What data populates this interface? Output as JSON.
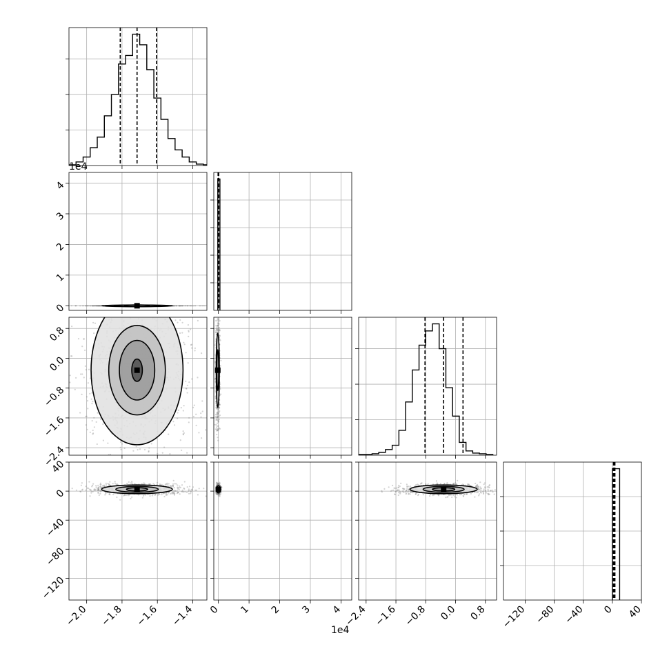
{
  "chart_data": {
    "type": "corner",
    "parameters": [
      {
        "range": [
          -2.1,
          -1.32
        ],
        "ticks": [
          -2.0,
          -1.8,
          -1.6,
          -1.4
        ],
        "tick_labels": [
          "−2.0",
          "−1.8",
          "−1.6",
          "−1.4"
        ],
        "offset_text": "",
        "quantiles": [
          -1.81,
          -1.715,
          -1.605
        ],
        "hist_bin_edges": [
          -2.1,
          -2.06,
          -2.02,
          -1.98,
          -1.94,
          -1.9,
          -1.86,
          -1.82,
          -1.78,
          -1.74,
          -1.7,
          -1.66,
          -1.62,
          -1.58,
          -1.54,
          -1.5,
          -1.46,
          -1.42,
          -1.38,
          -1.34,
          -1.3
        ],
        "hist_counts": [
          1,
          5,
          12,
          25,
          40,
          70,
          100,
          143,
          155,
          185,
          170,
          135,
          95,
          65,
          38,
          22,
          12,
          5,
          2,
          1
        ]
      },
      {
        "range": [
          -0.15,
          4.35
        ],
        "ticks": [
          0,
          1,
          2,
          3,
          4
        ],
        "tick_labels": [
          "0",
          "1",
          "2",
          "3",
          "4"
        ],
        "offset_text": "1e4",
        "quantiles": [
          -0.01,
          0.0,
          0.01
        ],
        "hist_bin_edges": [
          -0.02,
          0.05
        ],
        "hist_counts": [
          1
        ]
      },
      {
        "range": [
          -2.6,
          1.1
        ],
        "ticks": [
          -2.4,
          -1.6,
          -0.8,
          0.0,
          0.8
        ],
        "tick_labels": [
          "−2.4",
          "−1.6",
          "−0.8",
          "0.0",
          "0.8"
        ],
        "offset_text": "",
        "quantiles": [
          -0.82,
          -0.32,
          0.2
        ],
        "hist_bin_edges": [
          -2.6,
          -2.42,
          -2.24,
          -2.06,
          -1.88,
          -1.7,
          -1.52,
          -1.34,
          -1.16,
          -0.98,
          -0.8,
          -0.62,
          -0.44,
          -0.26,
          -0.08,
          0.1,
          0.28,
          0.46,
          0.64,
          0.82,
          1.0
        ],
        "hist_counts": [
          1,
          1,
          2,
          4,
          8,
          14,
          35,
          75,
          120,
          155,
          175,
          185,
          150,
          95,
          55,
          18,
          6,
          3,
          2,
          1
        ]
      },
      {
        "range": [
          -150,
          40
        ],
        "ticks": [
          -120,
          -80,
          -40,
          0,
          40
        ],
        "tick_labels": [
          "−120",
          "−80",
          "−40",
          "0",
          "40"
        ],
        "offset_text": "",
        "quantiles": [
          1.5,
          2.5,
          3.5
        ],
        "hist_bin_edges": [
          0.0,
          3.5,
          10.0
        ],
        "hist_counts": [
          1,
          1
        ]
      }
    ],
    "pairs": [
      {
        "row": 1,
        "col": 0,
        "center": [
          -1.715,
          0.0
        ],
        "contour_semi_axes": [
          [
            0.2,
            0.0004
          ],
          [
            0.13,
            0.00027
          ],
          [
            0.07,
            0.00015
          ]
        ]
      },
      {
        "row": 2,
        "col": 0,
        "center": [
          -1.715,
          -0.32
        ],
        "contour_semi_axes": [
          [
            0.26,
            2.0
          ],
          [
            0.16,
            1.2
          ],
          [
            0.1,
            0.8
          ],
          [
            0.03,
            0.3
          ]
        ]
      },
      {
        "row": 2,
        "col": 1,
        "center": [
          -0.02,
          -0.32
        ],
        "contour_semi_axes": [
          [
            0.05,
            1.0
          ],
          [
            0.03,
            0.55
          ]
        ]
      },
      {
        "row": 3,
        "col": 0,
        "center": [
          -1.715,
          2.5
        ],
        "contour_semi_axes": [
          [
            0.2,
            6.0
          ],
          [
            0.12,
            4.0
          ],
          [
            0.06,
            2.2
          ]
        ]
      },
      {
        "row": 3,
        "col": 1,
        "center": [
          0.0,
          2.5
        ],
        "contour_semi_axes": [
          [
            0.05,
            5.0
          ]
        ]
      },
      {
        "row": 3,
        "col": 2,
        "center": [
          -0.32,
          2.5
        ],
        "contour_semi_axes": [
          [
            0.9,
            6.0
          ],
          [
            0.55,
            4.0
          ],
          [
            0.3,
            2.2
          ]
        ]
      }
    ],
    "marginal_y_ticks": [
      [
        50,
        100,
        150
      ],
      [
        0.2,
        0.4,
        0.6,
        0.8
      ],
      [
        50,
        100,
        150
      ],
      [
        0.25,
        0.5,
        0.75
      ]
    ],
    "grid": true,
    "colors": {
      "line": "#000000",
      "grid": "#b0b0b0",
      "points": "#808080"
    }
  }
}
